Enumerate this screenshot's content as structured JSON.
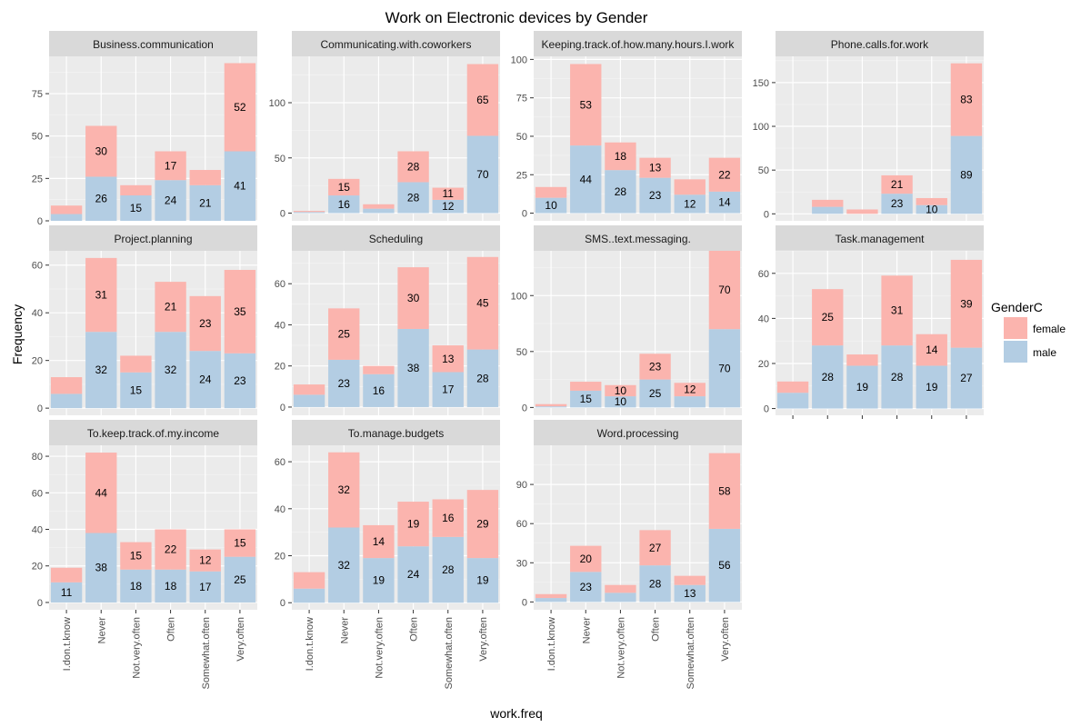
{
  "chart_data": {
    "type": "bar",
    "stacked": true,
    "title": "Work on Electronic devices by Gender",
    "xlabel": "work.freq",
    "ylabel": "Frequency",
    "categories": [
      "I.don.t.know",
      "Never",
      "Not.very.often",
      "Often",
      "Somewhat.often",
      "Very.often"
    ],
    "legend": {
      "title": "GenderC",
      "placement": "right",
      "entries": [
        {
          "name": "female",
          "color": "#fbb4ae"
        },
        {
          "name": "male",
          "color": "#b3cde3"
        }
      ]
    },
    "grid": true,
    "panels": [
      {
        "title": "Business.communication",
        "ylim": [
          0,
          97
        ],
        "yticks": [
          0,
          25,
          50,
          75
        ],
        "male": [
          4,
          26,
          15,
          24,
          21,
          41
        ],
        "female": [
          5,
          30,
          6,
          17,
          9,
          52
        ],
        "male_labels": [
          "",
          "26",
          "15",
          "24",
          "21",
          "41"
        ],
        "female_labels": [
          "",
          "30",
          "",
          "17",
          "",
          "52"
        ]
      },
      {
        "title": "Communicating.with.coworkers",
        "ylim": [
          -7,
          142
        ],
        "yticks": [
          0,
          50,
          100
        ],
        "male": [
          1,
          16,
          4,
          28,
          12,
          70
        ],
        "female": [
          1,
          15,
          4,
          28,
          11,
          65
        ],
        "male_labels": [
          "",
          "16",
          "",
          "28",
          "12",
          "70"
        ],
        "female_labels": [
          "",
          "15",
          "",
          "28",
          "11",
          "65"
        ]
      },
      {
        "title": "Keeping.track.of.how.many.hours.I.work",
        "ylim": [
          -5,
          102
        ],
        "yticks": [
          0,
          25,
          50,
          75,
          100
        ],
        "male": [
          10,
          44,
          28,
          23,
          12,
          14
        ],
        "female": [
          7,
          53,
          18,
          13,
          10,
          22
        ],
        "male_labels": [
          "10",
          "44",
          "28",
          "23",
          "12",
          "14"
        ],
        "female_labels": [
          "",
          "53",
          "18",
          "13",
          "",
          "22"
        ]
      },
      {
        "title": "Phone.calls.for.work",
        "ylim": [
          -8,
          180
        ],
        "yticks": [
          0,
          50,
          100,
          150
        ],
        "male": [
          0,
          8,
          0,
          23,
          10,
          89
        ],
        "female": [
          0,
          8,
          5,
          21,
          8,
          83
        ],
        "male_labels": [
          "",
          "",
          "",
          "23",
          "10",
          "89"
        ],
        "female_labels": [
          "",
          "",
          "",
          "21",
          "",
          "83"
        ]
      },
      {
        "title": "Project.planning",
        "ylim": [
          -3,
          66
        ],
        "yticks": [
          0,
          20,
          40,
          60
        ],
        "male": [
          6,
          32,
          15,
          32,
          24,
          23
        ],
        "female": [
          7,
          31,
          7,
          21,
          23,
          35
        ],
        "male_labels": [
          "",
          "32",
          "15",
          "32",
          "24",
          "23"
        ],
        "female_labels": [
          "",
          "31",
          "",
          "21",
          "23",
          "35"
        ]
      },
      {
        "title": "Scheduling",
        "ylim": [
          -4,
          76
        ],
        "yticks": [
          0,
          20,
          40,
          60
        ],
        "male": [
          6,
          23,
          16,
          38,
          17,
          28
        ],
        "female": [
          5,
          25,
          4,
          30,
          13,
          45
        ],
        "male_labels": [
          "",
          "23",
          "16",
          "38",
          "17",
          "28"
        ],
        "female_labels": [
          "",
          "25",
          "",
          "30",
          "13",
          "45"
        ]
      },
      {
        "title": "SMS..text.messaging.",
        "ylim": [
          -7,
          140
        ],
        "yticks": [
          0,
          50,
          100
        ],
        "male": [
          1,
          15,
          10,
          25,
          10,
          70
        ],
        "female": [
          2,
          8,
          10,
          23,
          12,
          70
        ],
        "male_labels": [
          "",
          "15",
          "10",
          "25",
          "",
          "70"
        ],
        "female_labels": [
          "",
          "",
          "10",
          "23",
          "12",
          "70"
        ]
      },
      {
        "title": "Task.management",
        "ylim": [
          -3,
          70
        ],
        "yticks": [
          0,
          20,
          40,
          60
        ],
        "male": [
          7,
          28,
          19,
          28,
          19,
          27
        ],
        "female": [
          5,
          25,
          5,
          31,
          14,
          39
        ],
        "male_labels": [
          "",
          "28",
          "19",
          "28",
          "19",
          "27"
        ],
        "female_labels": [
          "",
          "25",
          "",
          "31",
          "14",
          "39"
        ]
      },
      {
        "title": "To.keep.track.of.my.income",
        "ylim": [
          -4,
          86
        ],
        "yticks": [
          0,
          20,
          40,
          60,
          80
        ],
        "male": [
          11,
          38,
          18,
          18,
          17,
          25
        ],
        "female": [
          8,
          44,
          15,
          22,
          12,
          15
        ],
        "male_labels": [
          "11",
          "38",
          "18",
          "18",
          "17",
          "25"
        ],
        "female_labels": [
          "",
          "44",
          "15",
          "22",
          "12",
          "15"
        ]
      },
      {
        "title": "To.manage.budgets",
        "ylim": [
          -3,
          67
        ],
        "yticks": [
          0,
          20,
          40,
          60
        ],
        "male": [
          6,
          32,
          19,
          24,
          28,
          19
        ],
        "female": [
          7,
          32,
          14,
          19,
          16,
          29
        ],
        "male_labels": [
          "",
          "32",
          "19",
          "24",
          "28",
          "19"
        ],
        "female_labels": [
          "",
          "32",
          "14",
          "19",
          "16",
          "29"
        ]
      },
      {
        "title": "Word.processing",
        "ylim": [
          -6,
          120
        ],
        "yticks": [
          0,
          30,
          60,
          90
        ],
        "male": [
          3,
          23,
          7,
          28,
          13,
          56
        ],
        "female": [
          3,
          20,
          6,
          27,
          7,
          58
        ],
        "male_labels": [
          "",
          "23",
          "",
          "28",
          "13",
          "56"
        ],
        "female_labels": [
          "",
          "20",
          "",
          "27",
          "",
          "58"
        ]
      }
    ]
  }
}
